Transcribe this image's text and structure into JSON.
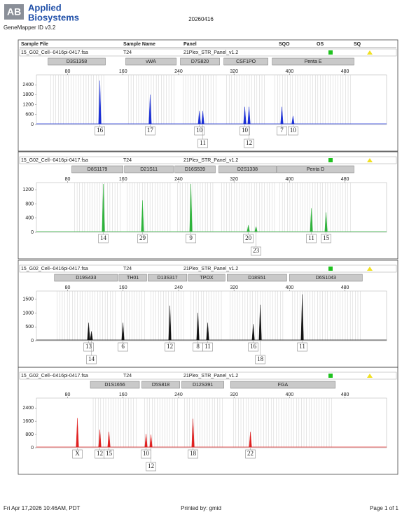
{
  "header": {
    "brand": [
      "Applied",
      "Biosystems"
    ],
    "software": "GeneMapper ID v3.2",
    "date": "20260416",
    "columns": [
      "Sample File",
      "Sample Name",
      "Panel",
      "SQO",
      "OS",
      "SQ"
    ]
  },
  "chart_data": [
    {
      "type": "electropherogram",
      "sample_file": "15_G02_Cell--0416pi-0417.fsa",
      "sample_name": "T24",
      "panel": "21Plex_STR_Panel_v1.2",
      "markers": [
        {
          "name": "D3S1358",
          "range": [
            51.7,
            134.5
          ]
        },
        {
          "name": "vWA",
          "range": [
            163.8,
            236.6
          ]
        },
        {
          "name": "D7S820",
          "range": [
            242.6,
            299.2
          ]
        },
        {
          "name": "CSF1PO",
          "range": [
            305.3,
            368.9
          ]
        },
        {
          "name": "Penta E",
          "range": [
            375,
            493
          ]
        }
      ],
      "x": [
        126.5,
        199,
        270,
        275,
        335.5,
        341.6,
        389,
        405
      ],
      "values": [
        2650,
        1800,
        815,
        815,
        1070,
        1070,
        1070,
        515
      ],
      "allele_labels": [
        "16",
        "17",
        "10",
        "11",
        "10",
        "12",
        "7",
        "10"
      ],
      "color": "#1a2fd6",
      "xlim": [
        35,
        540
      ],
      "xticks": [
        80,
        160,
        240,
        320,
        400,
        480
      ],
      "ylim": [
        0,
        3000
      ],
      "yticks": [
        0,
        600,
        1200,
        1800,
        2400
      ]
    },
    {
      "type": "electropherogram",
      "sample_file": "15_G02_Cell--0416pi-0417.fsa",
      "sample_name": "T24",
      "panel": "21Plex_STR_Panel_v1.2",
      "markers": [
        {
          "name": "D8S1179",
          "range": [
            86,
            160
          ]
        },
        {
          "name": "D21S11",
          "range": [
            162,
            232.5
          ]
        },
        {
          "name": "D16S539",
          "range": [
            234.5,
            293
          ]
        },
        {
          "name": "D2S1338",
          "range": [
            298,
            381
          ]
        },
        {
          "name": "Penta D",
          "range": [
            382,
            493
          ]
        }
      ],
      "x": [
        131.5,
        188,
        257.8,
        340.6,
        351.7,
        431.5,
        452.7
      ],
      "values": [
        1360,
        900,
        1360,
        200,
        160,
        680,
        560
      ],
      "allele_labels": [
        "14",
        "29",
        "9",
        "20",
        "23",
        "11",
        "15"
      ],
      "color": "#2db33a",
      "xlim": [
        35,
        540
      ],
      "xticks": [
        80,
        160,
        240,
        320,
        400,
        480
      ],
      "ylim": [
        0,
        1400
      ],
      "yticks": [
        0,
        400,
        800,
        1200
      ]
    },
    {
      "type": "electropherogram",
      "sample_file": "15_G02_Cell--0416pi-0417.fsa",
      "sample_name": "T24",
      "panel": "21Plex_STR_Panel_v1.2",
      "markers": [
        {
          "name": "D19S433",
          "range": [
            61,
            152
          ]
        },
        {
          "name": "TH01",
          "range": [
            154,
            194
          ]
        },
        {
          "name": "D13S317",
          "range": [
            196,
            252
          ]
        },
        {
          "name": "TPOX",
          "range": [
            254,
            307
          ]
        },
        {
          "name": "D18S51",
          "range": [
            310,
            396
          ]
        },
        {
          "name": "D6S1043",
          "range": [
            400,
            505
          ]
        }
      ],
      "x": [
        110.3,
        114.3,
        159.8,
        227.5,
        267.9,
        282,
        347.7,
        357.8,
        418.4
      ],
      "values": [
        650,
        340,
        650,
        1270,
        1010,
        650,
        600,
        1300,
        1680
      ],
      "allele_labels": [
        "13",
        "14",
        "6",
        "12",
        "8",
        "11",
        "16",
        "18",
        "11"
      ],
      "color": "#111111",
      "xlim": [
        35,
        540
      ],
      "xticks": [
        80,
        160,
        240,
        320,
        400,
        480
      ],
      "ylim": [
        0,
        1800
      ],
      "yticks": [
        0,
        500,
        1000,
        1500
      ]
    },
    {
      "type": "electropherogram",
      "sample_file": "15_G02_Cell--0416pi-0417.fsa",
      "sample_name": "T24",
      "panel": "21Plex_STR_Panel_v1.2",
      "markers": [
        {
          "name": "D1S1656",
          "range": [
            112.8,
            183.5
          ]
        },
        {
          "name": "D5S818",
          "range": [
            187,
            241.6
          ]
        },
        {
          "name": "D12S391",
          "range": [
            244.6,
            305.3
          ]
        },
        {
          "name": "FGA",
          "range": [
            315,
            466
          ]
        }
      ],
      "x": [
        94.1,
        126.5,
        139.6,
        193.1,
        200.2,
        260.8,
        343.6
      ],
      "values": [
        1790,
        1090,
        960,
        830,
        790,
        1750,
        960
      ],
      "allele_labels": [
        "X",
        "12",
        "15",
        "10",
        "12",
        "18",
        "22"
      ],
      "color": "#e02020",
      "xlim": [
        35,
        540
      ],
      "xticks": [
        80,
        160,
        240,
        320,
        400,
        480
      ],
      "ylim": [
        0,
        3000
      ],
      "yticks": [
        0,
        800,
        1600,
        2400
      ]
    }
  ],
  "footer": {
    "printed": "Fri Apr 17,2026 10:46AM, PDT",
    "printed_by": "Printed by: gmid",
    "page": "Page 1 of 1"
  }
}
